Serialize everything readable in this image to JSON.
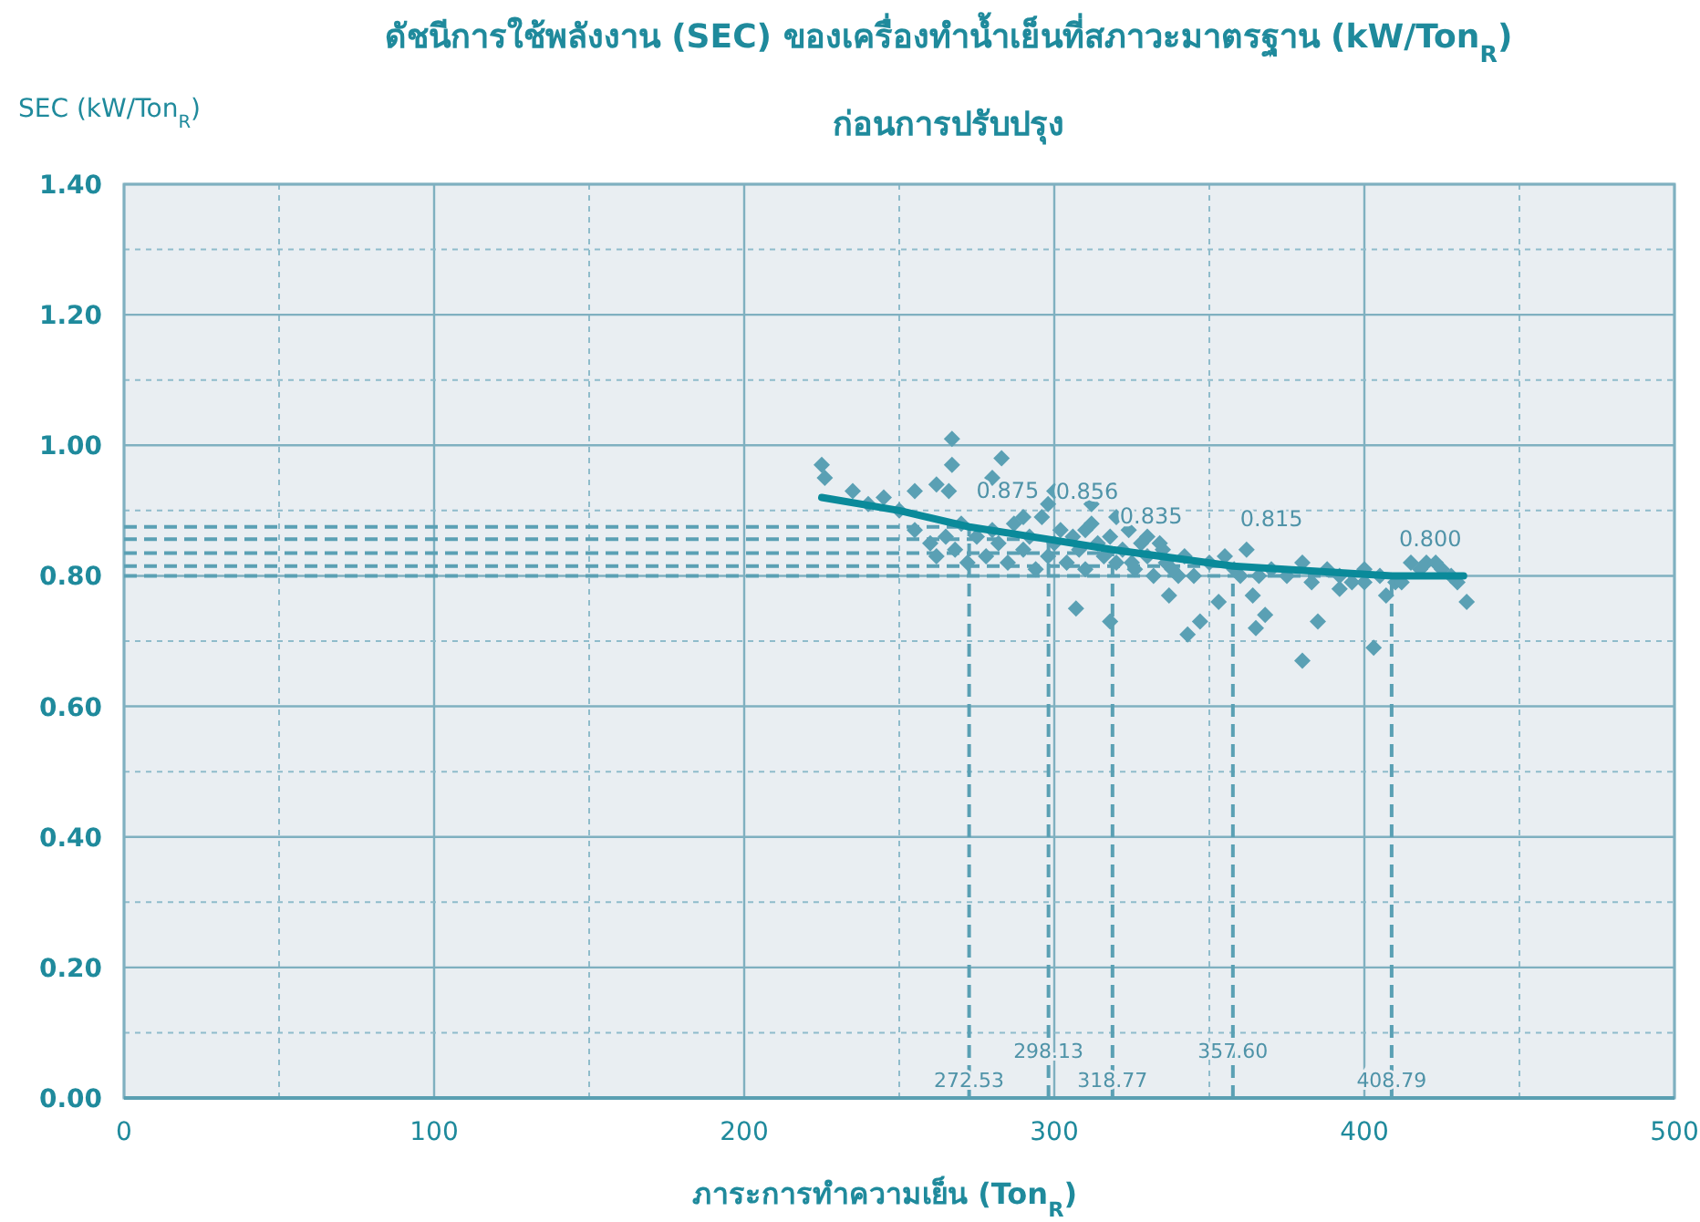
{
  "chart_data": {
    "type": "scatter",
    "title": "ดัชนีการใช้พลังงาน (SEC) ของเครื่องทำน้ำเย็นที่สภาวะมาตรฐาน (kW/Ton$_{R}$)",
    "subtitle": "ก่อนการปรับปรุง",
    "xlabel": "ภาระการทำความเย็น (Ton$_{R}$)",
    "ylabel": "SEC (kW/Ton$_{R}$)",
    "xlim": [
      0,
      500
    ],
    "xticks": [
      0,
      {
        "value": 50,
        "label": null
      },
      100,
      {
        "value": 150,
        "label": null
      },
      200,
      {
        "value": 250,
        "label": null
      },
      300,
      {
        "value": 350,
        "label": null
      },
      400,
      {
        "value": 450,
        "label": null
      },
      500
    ],
    "ylim": [
      0,
      1.4
    ],
    "yticks": [
      {
        "value": 0,
        "label": "0.00"
      },
      {
        "value": 0.1,
        "label": null
      },
      {
        "value": 0.2,
        "label": "0.20"
      },
      {
        "value": 0.3,
        "label": null
      },
      {
        "value": 0.4,
        "label": "0.40"
      },
      {
        "value": 0.5,
        "label": null
      },
      {
        "value": 0.6,
        "label": "0.60"
      },
      {
        "value": 0.7,
        "label": null
      },
      {
        "value": 0.8,
        "label": "0.80"
      },
      {
        "value": 0.9,
        "label": null
      },
      {
        "value": 1.0,
        "label": "1.00"
      },
      {
        "value": 1.1,
        "label": null
      },
      {
        "value": 1.2,
        "label": "1.20"
      },
      {
        "value": 1.3,
        "label": null
      },
      {
        "value": 1.4,
        "label": "1.40"
      }
    ],
    "grid": true,
    "series": [
      {
        "type": "scatter",
        "marker": "diamond",
        "color": "#5aa0b4",
        "x": [
          225,
          226,
          235,
          245,
          255,
          262,
          266,
          267,
          267,
          283,
          280,
          300,
          298,
          290,
          312,
          320,
          310,
          330,
          335,
          325,
          340,
          337,
          347,
          343,
          353,
          360,
          364,
          368,
          365,
          380,
          385,
          392,
          400,
          403,
          407,
          410,
          415,
          420,
          425,
          430,
          433,
          318,
          307,
          260,
          262,
          265,
          268,
          270,
          272,
          275,
          278,
          280,
          282,
          285,
          287,
          290,
          292,
          294,
          296,
          298,
          300,
          302,
          304,
          306,
          308,
          310,
          312,
          314,
          316,
          318,
          320,
          322,
          324,
          326,
          328,
          330,
          332,
          334,
          336,
          338,
          342,
          345,
          350,
          355,
          358,
          362,
          366,
          370,
          375,
          380,
          383,
          388,
          392,
          396,
          400,
          405,
          412,
          418,
          423,
          428,
          255,
          250,
          240
        ],
        "values": [
          0.97,
          0.95,
          0.93,
          0.92,
          0.93,
          0.94,
          0.93,
          1.01,
          0.97,
          0.98,
          0.95,
          0.93,
          0.91,
          0.89,
          0.91,
          0.89,
          0.87,
          0.86,
          0.84,
          0.82,
          0.8,
          0.77,
          0.73,
          0.71,
          0.76,
          0.8,
          0.77,
          0.74,
          0.72,
          0.67,
          0.73,
          0.78,
          0.79,
          0.69,
          0.77,
          0.79,
          0.82,
          0.82,
          0.81,
          0.79,
          0.76,
          0.73,
          0.75,
          0.85,
          0.83,
          0.86,
          0.84,
          0.88,
          0.82,
          0.86,
          0.83,
          0.87,
          0.85,
          0.82,
          0.88,
          0.84,
          0.86,
          0.81,
          0.89,
          0.83,
          0.85,
          0.87,
          0.82,
          0.86,
          0.84,
          0.81,
          0.88,
          0.85,
          0.83,
          0.86,
          0.82,
          0.84,
          0.87,
          0.81,
          0.85,
          0.83,
          0.8,
          0.85,
          0.82,
          0.81,
          0.83,
          0.8,
          0.82,
          0.83,
          0.81,
          0.84,
          0.8,
          0.81,
          0.8,
          0.82,
          0.79,
          0.81,
          0.8,
          0.79,
          0.81,
          0.8,
          0.79,
          0.81,
          0.82,
          0.8,
          0.87,
          0.9,
          0.91
        ]
      },
      {
        "type": "line",
        "marker": "none",
        "line_style": "solid",
        "color": "#0a8a9a",
        "x": [
          225,
          250,
          272.53,
          298.13,
          318.77,
          357.6,
          408.79,
          432
        ],
        "values": [
          0.92,
          0.9,
          0.875,
          0.856,
          0.84,
          0.815,
          0.8,
          0.8
        ]
      }
    ],
    "ref_lines": [
      {
        "axis": "y",
        "value": 0.875,
        "label": "0.875",
        "color": "#5aa0b4",
        "line_style": "dashed"
      },
      {
        "axis": "y",
        "value": 0.856,
        "label": "0.856",
        "color": "#5aa0b4",
        "line_style": "dashed"
      },
      {
        "axis": "y",
        "value": 0.835,
        "label": "0.835",
        "color": "#5aa0b4",
        "line_style": "dashed"
      },
      {
        "axis": "y",
        "value": 0.815,
        "label": "0.815",
        "color": "#5aa0b4",
        "line_style": "dashed"
      },
      {
        "axis": "y",
        "value": 0.8,
        "label": "0.800",
        "color": "#5aa0b4",
        "line_style": "dashed"
      },
      {
        "axis": "x",
        "value": 272.53,
        "label": "272.53",
        "color": "#5aa0b4",
        "line_style": "dashed"
      },
      {
        "axis": "x",
        "value": 298.13,
        "label": "298.13",
        "color": "#5aa0b4",
        "line_style": "dashed"
      },
      {
        "axis": "x",
        "value": 318.77,
        "label": "318.77",
        "color": "#5aa0b4",
        "line_style": "dashed"
      },
      {
        "axis": "x",
        "value": 357.6,
        "label": "357.60",
        "color": "#5aa0b4",
        "line_style": "dashed"
      },
      {
        "axis": "x",
        "value": 408.79,
        "label": "408.79",
        "color": "#5aa0b4",
        "line_style": "dashed"
      }
    ]
  }
}
